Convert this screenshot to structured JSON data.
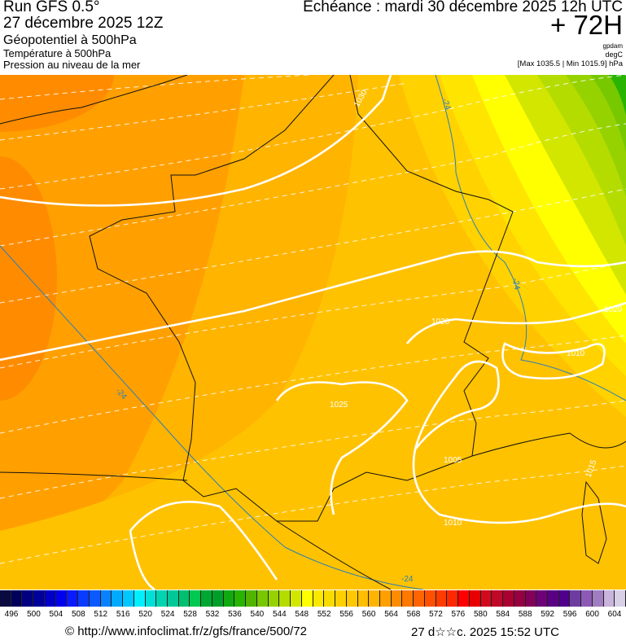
{
  "header": {
    "run": "Run GFS 0.5°",
    "run_date": "27 décembre 2025 12Z",
    "field1": "Géopotentiel à 500hPa",
    "field2": "Température à 500hPa",
    "field3": "Pression au niveau de la mer",
    "echeance": "Echéance : mardi 30 décembre 2025 12h UTC",
    "lead": "+ 72H",
    "unit1": "gpdam",
    "unit2": "degC",
    "minmax": "[Max 1035.5 | Min 1015.9] hPa"
  },
  "map": {
    "isobar_labels": [
      "1030",
      "1020",
      "1020",
      "1010",
      "1025",
      "1005",
      "1015",
      "1010"
    ],
    "temp_labels": [
      "-24",
      "-24",
      "-24",
      "-24"
    ],
    "colors": {
      "land_outline": "#111111",
      "isobar": "#ffffff",
      "temp_line": "#2a7fb8"
    }
  },
  "colorbar": {
    "ticks": [
      "496",
      "500",
      "504",
      "508",
      "512",
      "516",
      "520",
      "524",
      "528",
      "532",
      "536",
      "540",
      "544",
      "548",
      "552",
      "556",
      "560",
      "564",
      "568",
      "572",
      "576",
      "580",
      "584",
      "588",
      "592",
      "596",
      "600",
      "604"
    ],
    "colors": [
      "#0a0a40",
      "#00005a",
      "#000080",
      "#00009a",
      "#0000c8",
      "#0000f0",
      "#0a1aff",
      "#0a3cff",
      "#0a5aff",
      "#0a82ff",
      "#00aaff",
      "#00c8ff",
      "#00f0ff",
      "#00e0d8",
      "#00d4b0",
      "#00c898",
      "#00c070",
      "#00c850",
      "#00a832",
      "#009f2a",
      "#10aa10",
      "#28b400",
      "#50b400",
      "#78c800",
      "#96d200",
      "#b4dc00",
      "#d2e600",
      "#ffff00",
      "#fbe800",
      "#f8dc00",
      "#ffd000",
      "#ffc800",
      "#ffbe00",
      "#ffb400",
      "#ffa000",
      "#ff8c00",
      "#ff7800",
      "#ff6400",
      "#ff5000",
      "#ff3c00",
      "#ff2800",
      "#ff0000",
      "#e60000",
      "#d20a1e",
      "#be0a28",
      "#aa0032",
      "#960040",
      "#82005a",
      "#6e0078",
      "#5a0082",
      "#50008c",
      "#6e3ca0",
      "#8c5ab4",
      "#a07cc0",
      "#c8b4dc",
      "#d8d0e6"
    ]
  },
  "footer": {
    "copyright": "© http://www.infoclimat.fr/z/gfs/france/500/72",
    "timestamp": "27 d☆☆c. 2025 15:52 UTC"
  }
}
